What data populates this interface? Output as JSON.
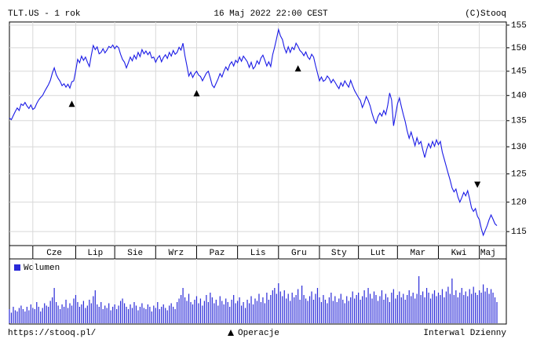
{
  "chart_data": {
    "type": "line",
    "title": "TLT.US - 1 rok",
    "subtitle": "16 Maj 2022 22:00 CEST",
    "source": "(C)Stooq",
    "log_scale": true,
    "grid": true,
    "ylim": [
      112.7,
      155.7
    ],
    "yticks": [
      115,
      120,
      125,
      130,
      135,
      140,
      145,
      150,
      155
    ],
    "xlim": [
      0,
      250
    ],
    "xticks": [
      {
        "value": 12,
        "label": "Cze"
      },
      {
        "value": 34,
        "label": "Lip"
      },
      {
        "value": 54,
        "label": "Sie"
      },
      {
        "value": 75,
        "label": "Wrz"
      },
      {
        "value": 96,
        "label": "Paz"
      },
      {
        "value": 117,
        "label": "Lis"
      },
      {
        "value": 138,
        "label": "Gru"
      },
      {
        "value": 159,
        "label": "Sty"
      },
      {
        "value": 179,
        "label": "Lut"
      },
      {
        "value": 199,
        "label": "Mar"
      },
      {
        "value": 220,
        "label": "Kwi"
      },
      {
        "value": 241,
        "label": "Maj"
      }
    ],
    "series": [
      {
        "color": "#1a1ae6",
        "values": [
          135.5,
          135.2,
          136.0,
          136.8,
          137.5,
          137.0,
          138.3,
          138.0,
          138.6,
          137.9,
          137.4,
          138.1,
          137.2,
          137.5,
          138.4,
          139.1,
          139.6,
          140.0,
          140.8,
          141.5,
          142.2,
          143.1,
          144.6,
          145.7,
          144.3,
          143.5,
          142.9,
          142.0,
          142.4,
          141.7,
          142.3,
          141.5,
          142.8,
          143.0,
          145.1,
          147.5,
          146.8,
          148.2,
          147.3,
          148.0,
          146.9,
          146.0,
          148.4,
          150.5,
          149.6,
          150.2,
          148.7,
          149.0,
          149.8,
          148.9,
          149.5,
          150.3,
          150.0,
          150.6,
          149.8,
          150.4,
          150.0,
          148.6,
          147.5,
          146.9,
          145.7,
          146.8,
          148.0,
          147.2,
          148.4,
          147.6,
          149.0,
          148.1,
          149.6,
          148.7,
          149.3,
          148.5,
          149.1,
          147.8,
          148.0,
          146.9,
          147.8,
          148.3,
          147.0,
          147.9,
          148.5,
          147.7,
          149.0,
          148.2,
          149.4,
          148.6,
          149.0,
          150.1,
          149.5,
          151.0,
          148.3,
          146.2,
          144.0,
          144.8,
          143.7,
          144.5,
          145.0,
          144.2,
          143.9,
          143.0,
          143.8,
          144.6,
          145.0,
          143.6,
          142.1,
          141.6,
          142.5,
          143.4,
          144.5,
          143.8,
          145.0,
          145.9,
          145.2,
          146.4,
          147.0,
          146.1,
          147.3,
          146.8,
          148.0,
          147.1,
          148.2,
          147.6,
          147.0,
          145.8,
          146.9,
          145.5,
          146.0,
          147.2,
          146.5,
          147.8,
          148.4,
          147.3,
          146.1,
          147.0,
          146.0,
          148.5,
          150.1,
          152.0,
          154.0,
          152.6,
          151.8,
          150.0,
          148.9,
          150.2,
          149.0,
          150.1,
          149.6,
          151.0,
          150.3,
          149.4,
          149.0,
          148.3,
          149.1,
          148.0,
          147.5,
          148.6,
          148.0,
          146.2,
          144.6,
          143.0,
          143.8,
          142.9,
          143.2,
          144.0,
          143.5,
          142.6,
          143.3,
          142.7,
          142.0,
          141.4,
          142.6,
          141.9,
          143.0,
          142.3,
          141.7,
          143.1,
          142.0,
          141.0,
          140.3,
          139.6,
          139.0,
          137.6,
          138.5,
          139.8,
          139.0,
          137.9,
          136.4,
          135.2,
          134.5,
          135.8,
          136.5,
          135.9,
          137.0,
          136.2,
          138.0,
          140.5,
          139.1,
          134.0,
          136.1,
          138.3,
          139.5,
          137.8,
          136.2,
          134.8,
          133.0,
          131.6,
          132.8,
          131.5,
          130.2,
          131.7,
          130.5,
          131.0,
          129.4,
          128.0,
          129.5,
          130.6,
          129.8,
          131.0,
          130.1,
          131.3,
          130.4,
          131.0,
          129.0,
          127.7,
          126.4,
          125.1,
          123.9,
          122.5,
          121.8,
          122.3,
          120.9,
          120.0,
          120.8,
          121.7,
          121.1,
          122.0,
          120.6,
          119.0,
          118.4,
          118.9,
          117.6,
          117.0,
          115.5,
          114.4,
          115.2,
          116.0,
          117.0,
          117.8,
          117.1,
          116.3,
          116.0
        ]
      }
    ],
    "volume": {
      "name": "Wolumen",
      "color": "#2a2ad8",
      "ylim": [
        0,
        50
      ],
      "values": [
        12,
        9,
        14,
        11,
        10,
        13,
        15,
        12,
        10,
        14,
        11,
        16,
        13,
        12,
        18,
        14,
        10,
        13,
        17,
        15,
        14,
        19,
        22,
        30,
        18,
        15,
        12,
        16,
        14,
        20,
        13,
        17,
        15,
        21,
        24,
        18,
        14,
        16,
        19,
        13,
        15,
        20,
        17,
        23,
        28,
        16,
        14,
        18,
        12,
        15,
        13,
        17,
        11,
        14,
        16,
        12,
        15,
        19,
        21,
        17,
        14,
        12,
        16,
        13,
        18,
        15,
        11,
        14,
        17,
        13,
        12,
        16,
        14,
        10,
        15,
        13,
        18,
        12,
        14,
        16,
        13,
        11,
        15,
        17,
        14,
        12,
        18,
        21,
        24,
        30,
        22,
        19,
        25,
        18,
        16,
        20,
        23,
        17,
        21,
        15,
        19,
        24,
        18,
        26,
        22,
        17,
        20,
        15,
        23,
        19,
        16,
        21,
        18,
        14,
        20,
        24,
        17,
        19,
        22,
        15,
        18,
        13,
        20,
        17,
        23,
        16,
        21,
        19,
        25,
        18,
        22,
        17,
        26,
        20,
        24,
        28,
        30,
        25,
        34,
        27,
        23,
        28,
        21,
        25,
        19,
        26,
        22,
        24,
        29,
        20,
        32,
        24,
        21,
        19,
        23,
        27,
        20,
        25,
        30,
        22,
        18,
        24,
        20,
        17,
        22,
        26,
        19,
        23,
        18,
        21,
        25,
        20,
        17,
        23,
        19,
        22,
        27,
        21,
        24,
        26,
        20,
        23,
        28,
        22,
        30,
        25,
        21,
        27,
        24,
        19,
        23,
        28,
        20,
        25,
        22,
        18,
        26,
        29,
        21,
        24,
        27,
        22,
        25,
        20,
        24,
        28,
        23,
        26,
        21,
        25,
        40,
        24,
        27,
        22,
        30,
        26,
        21,
        25,
        28,
        23,
        26,
        24,
        29,
        22,
        27,
        31,
        25,
        38,
        24,
        28,
        22,
        26,
        30,
        24,
        27,
        23,
        29,
        25,
        31,
        26,
        24,
        28,
        26,
        33,
        27,
        30,
        25,
        29,
        26,
        22,
        18
      ]
    },
    "operations": {
      "name": "Operacje",
      "items": [
        {
          "x": 32,
          "direction": "up"
        },
        {
          "x": 96,
          "direction": "up"
        },
        {
          "x": 148,
          "direction": "up"
        },
        {
          "x": 240,
          "direction": "down"
        }
      ]
    },
    "footer_left": "https://stooq.pl/",
    "footer_right": "Interwal Dzienny"
  }
}
